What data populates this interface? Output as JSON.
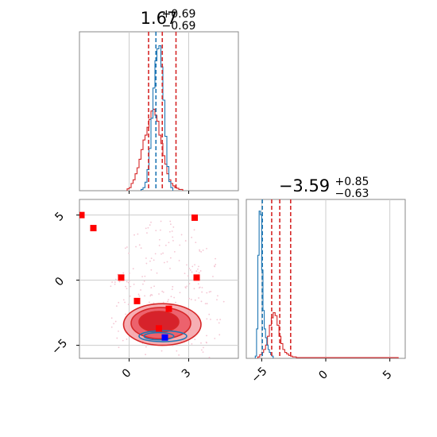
{
  "chart_data": {
    "type": "scatter",
    "title_param1": {
      "value": "1.67",
      "plus": "+0.69",
      "minus": "−0.69"
    },
    "title_param2": {
      "value": "−3.59",
      "plus": "+0.85",
      "minus": "−0.63"
    },
    "param1": {
      "xlim": [
        -2.5,
        5.5
      ],
      "ticks": [
        0,
        3
      ],
      "tick_labels": [
        "0",
        "3"
      ],
      "quantiles_red": [
        0.98,
        2.36
      ],
      "median_red": 1.67,
      "quantile_blue": 1.35
    },
    "param2": {
      "xlim": [
        -6.2,
        6.2
      ],
      "ylim": [
        -6.0,
        6.2
      ],
      "ticks": [
        -5,
        0,
        5
      ],
      "tick_labels": [
        "−5",
        "0",
        "5"
      ],
      "quantiles_red": [
        -4.22,
        -2.74
      ],
      "median_red": -3.59,
      "quantile_blue": -4.95
    },
    "hist_blue_param1": {
      "bin_edges_start": 0.6,
      "bin_width": 0.1,
      "counts": [
        2,
        5,
        14,
        35,
        70,
        120,
        170,
        215,
        235,
        240,
        205,
        150,
        90,
        40,
        15,
        5
      ]
    },
    "hist_red_param1": {
      "bin_edges_start": -0.1,
      "bin_width": 0.1,
      "counts": [
        3,
        5,
        12,
        18,
        28,
        38,
        52,
        68,
        84,
        92,
        105,
        118,
        132,
        135,
        125,
        115,
        92,
        78,
        58,
        44,
        28,
        18,
        12,
        8,
        5,
        4,
        2,
        2
      ]
    },
    "hist_blue_param2": {
      "bin_edges_start": -5.5,
      "bin_width": 0.1,
      "counts": [
        3,
        40,
        140,
        200,
        195,
        120,
        65,
        40,
        28,
        18,
        12,
        8,
        5,
        3
      ]
    },
    "hist_red_param2": {
      "bin_edges_start": -5.3,
      "bin_width": 0.15,
      "counts": [
        2,
        5,
        8,
        12,
        18,
        30,
        45,
        55,
        62,
        58,
        45,
        30,
        20,
        12,
        8,
        6,
        4,
        3,
        2,
        2,
        1,
        1,
        1,
        1,
        1,
        1,
        1,
        1,
        1,
        1,
        1,
        1,
        1,
        1,
        1,
        1,
        1,
        1,
        1,
        1,
        1,
        1,
        1,
        1,
        1,
        1,
        1,
        1,
        1,
        1,
        1,
        1,
        1,
        1,
        1,
        1,
        1,
        1,
        1,
        1,
        1,
        1,
        1,
        1,
        1,
        1,
        1,
        1,
        1,
        1,
        1,
        1,
        1
      ]
    },
    "red_squares": [
      {
        "x": -2.4,
        "y": 5.0
      },
      {
        "x": -1.8,
        "y": 4.0
      },
      {
        "x": -0.4,
        "y": 0.2
      },
      {
        "x": 0.4,
        "y": -1.6
      },
      {
        "x": 2.0,
        "y": -2.2
      },
      {
        "x": 1.5,
        "y": -3.7
      },
      {
        "x": 3.3,
        "y": 4.8
      },
      {
        "x": 3.4,
        "y": 0.2
      }
    ],
    "blue_square": {
      "x": 1.8,
      "y": -4.4
    },
    "red_contours": [
      {
        "cx": 1.67,
        "cy": -3.4,
        "rx": 1.95,
        "ry": 1.6,
        "fill": "#f5a0a6"
      },
      {
        "cx": 1.6,
        "cy": -3.3,
        "rx": 1.5,
        "ry": 1.2,
        "fill": "#ea5560"
      },
      {
        "cx": 1.5,
        "cy": -3.2,
        "rx": 1.0,
        "ry": 0.8,
        "fill": "#d41820"
      }
    ],
    "blue_contours": [
      {
        "cx": 1.7,
        "cy": -4.3,
        "rx": 1.2,
        "ry": 0.42
      },
      {
        "cx": 1.5,
        "cy": -4.3,
        "rx": 0.75,
        "ry": 0.28
      }
    ],
    "colors": {
      "red": "#d62728",
      "blue": "#1f77b4",
      "pure_red": "#ff0000",
      "pure_blue": "#0000ff",
      "grid": "#cccccc",
      "dots": "#f4c6d3"
    }
  }
}
